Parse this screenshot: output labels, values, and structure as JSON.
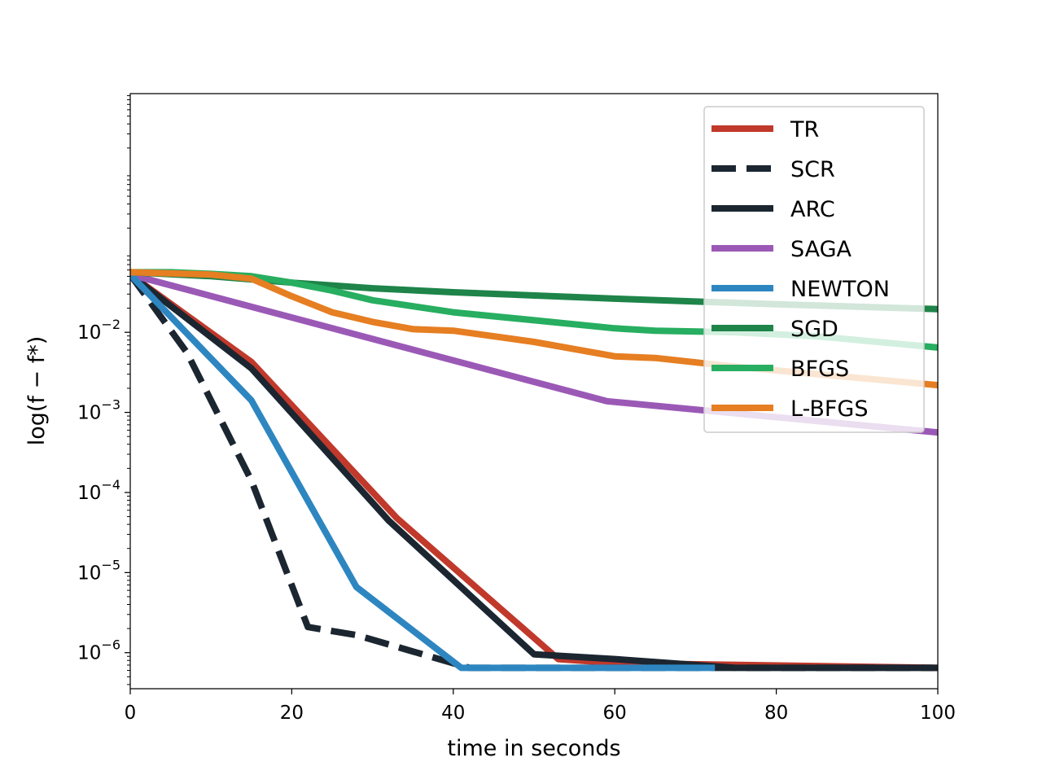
{
  "chart_data": {
    "type": "line",
    "title": "",
    "xlabel": "time in seconds",
    "ylabel": "log(f − f*)",
    "xlim": [
      0,
      100
    ],
    "ylim_log10": [
      -6.45,
      0.98
    ],
    "yscale": "log",
    "x_ticks": [
      0,
      20,
      40,
      60,
      80,
      100
    ],
    "x_tick_labels": [
      "0",
      "20",
      "40",
      "60",
      "80",
      "100"
    ],
    "y_ticks_log10": [
      -2,
      -3,
      -4,
      -5,
      -6
    ],
    "y_tick_labels": [
      {
        "base": "10",
        "exp": "−2"
      },
      {
        "base": "10",
        "exp": "−3"
      },
      {
        "base": "10",
        "exp": "−4"
      },
      {
        "base": "10",
        "exp": "−5"
      },
      {
        "base": "10",
        "exp": "−6"
      }
    ],
    "grid": false,
    "legend_position": "top-right",
    "series": [
      {
        "name": "TR",
        "color": "#c0392b",
        "dash": "solid",
        "points": [
          [
            0,
            -1.28
          ],
          [
            15,
            -2.37
          ],
          [
            33,
            -4.32
          ],
          [
            53,
            -6.08
          ],
          [
            60,
            -6.13
          ],
          [
            100,
            -6.19
          ]
        ]
      },
      {
        "name": "SCR",
        "color": "#1b2631",
        "dash": "dashed",
        "points": [
          [
            0,
            -1.28
          ],
          [
            7,
            -2.25
          ],
          [
            15,
            -3.85
          ],
          [
            22,
            -5.68
          ],
          [
            28,
            -5.78
          ],
          [
            42,
            -6.19
          ],
          [
            100,
            -6.19
          ]
        ]
      },
      {
        "name": "ARC",
        "color": "#1b2631",
        "dash": "solid",
        "points": [
          [
            0,
            -1.28
          ],
          [
            15,
            -2.45
          ],
          [
            32,
            -4.35
          ],
          [
            50,
            -6.02
          ],
          [
            60,
            -6.08
          ],
          [
            75,
            -6.19
          ],
          [
            99,
            -6.19
          ]
        ]
      },
      {
        "name": "SAGA",
        "color": "#9b59b6",
        "dash": "solid",
        "points": [
          [
            0,
            -1.28
          ],
          [
            59,
            -2.86
          ],
          [
            100,
            -3.25
          ]
        ]
      },
      {
        "name": "NEWTON",
        "color": "#2e86c1",
        "dash": "solid",
        "points": [
          [
            0,
            -1.28
          ],
          [
            15,
            -2.85
          ],
          [
            28,
            -5.18
          ],
          [
            41,
            -6.19
          ],
          [
            72,
            -6.19
          ]
        ]
      },
      {
        "name": "SGD",
        "color": "#1e8449",
        "dash": "solid",
        "points": [
          [
            0,
            -1.25
          ],
          [
            10,
            -1.3
          ],
          [
            20,
            -1.38
          ],
          [
            30,
            -1.45
          ],
          [
            40,
            -1.5
          ],
          [
            60,
            -1.58
          ],
          [
            80,
            -1.65
          ],
          [
            100,
            -1.71
          ]
        ]
      },
      {
        "name": "BFGS",
        "color": "#27ae60",
        "dash": "solid",
        "points": [
          [
            0,
            -1.25
          ],
          [
            5,
            -1.25
          ],
          [
            10,
            -1.27
          ],
          [
            15,
            -1.3
          ],
          [
            20,
            -1.38
          ],
          [
            25,
            -1.48
          ],
          [
            30,
            -1.6
          ],
          [
            40,
            -1.75
          ],
          [
            50,
            -1.85
          ],
          [
            60,
            -1.95
          ],
          [
            65,
            -1.98
          ],
          [
            75,
            -2.0
          ],
          [
            85,
            -2.05
          ],
          [
            100,
            -2.19
          ]
        ]
      },
      {
        "name": "L-BFGS",
        "color": "#e67e22",
        "dash": "solid",
        "points": [
          [
            0,
            -1.25
          ],
          [
            10,
            -1.28
          ],
          [
            15,
            -1.33
          ],
          [
            20,
            -1.55
          ],
          [
            25,
            -1.75
          ],
          [
            30,
            -1.87
          ],
          [
            35,
            -1.96
          ],
          [
            40,
            -1.98
          ],
          [
            50,
            -2.12
          ],
          [
            60,
            -2.3
          ],
          [
            65,
            -2.32
          ],
          [
            75,
            -2.43
          ],
          [
            100,
            -2.66
          ]
        ]
      }
    ]
  }
}
